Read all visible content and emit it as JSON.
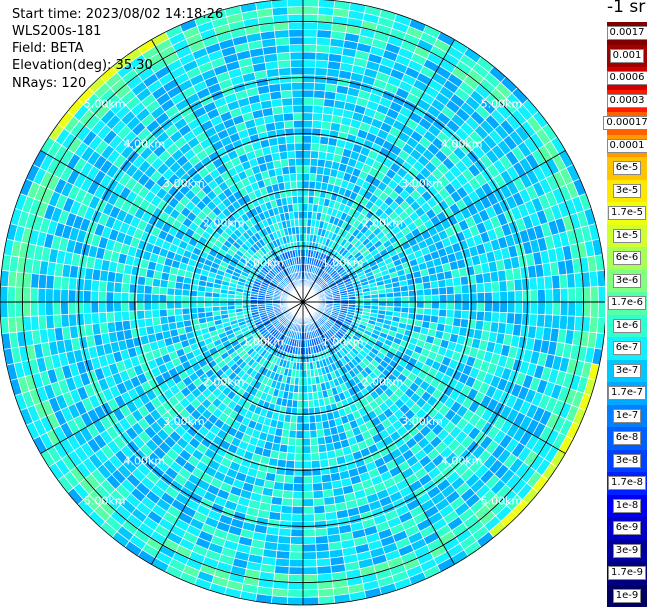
{
  "header": {
    "start_time": "Start time: 2023/08/02 14:18:26",
    "device": "WLS200s-181",
    "field": "Field: BETA",
    "elevation": "Elevation(deg): 35.30",
    "nrays": "NRays: 120"
  },
  "chart_data": {
    "type": "heatmap",
    "projection": "polar PPI",
    "n_rays": 120,
    "max_range_km": 5.4,
    "range_rings_km": [
      1.0,
      2.0,
      3.0,
      4.0,
      5.0
    ],
    "ring_labels": [
      "1.00km",
      "2.00km",
      "3.00km",
      "4.00km",
      "5.00km"
    ],
    "colorbar_unit": "-1 sr",
    "colorbar_labels": [
      "0.0017",
      "0.001",
      "0.0006",
      "0.0003",
      "0.00017",
      "0.0001",
      "6e-5",
      "3e-5",
      "1.7e-5",
      "1e-5",
      "6e-6",
      "3e-6",
      "1.7e-6",
      "1e-6",
      "6e-7",
      "3e-7",
      "1.7e-7",
      "1e-7",
      "6e-8",
      "3e-8",
      "1.7e-8",
      "1e-8",
      "6e-9",
      "3e-9",
      "1.7e-9",
      "1e-9"
    ],
    "colorbar_colors": [
      "#800000",
      "#a00000",
      "#d00000",
      "#ff1a00",
      "#ff6000",
      "#ff9a00",
      "#ffc400",
      "#ffe800",
      "#f0ff10",
      "#cfff30",
      "#a8ff57",
      "#80ff80",
      "#57ffa8",
      "#30ffcf",
      "#10f0ff",
      "#00c8ff",
      "#00a8ff",
      "#0080ff",
      "#0060ff",
      "#0040ff",
      "#0020ff",
      "#0000f0",
      "#0000c8",
      "#0000a0",
      "#000080",
      "#000060"
    ],
    "field_pattern": {
      "near_field_km": [
        0.0,
        1.0
      ],
      "typical_bin": "3e-7",
      "outer_ring_km": [
        4.8,
        5.3
      ],
      "outer_ring_bin": "1e-6",
      "edge_high_bin": "1.7e-5"
    }
  }
}
